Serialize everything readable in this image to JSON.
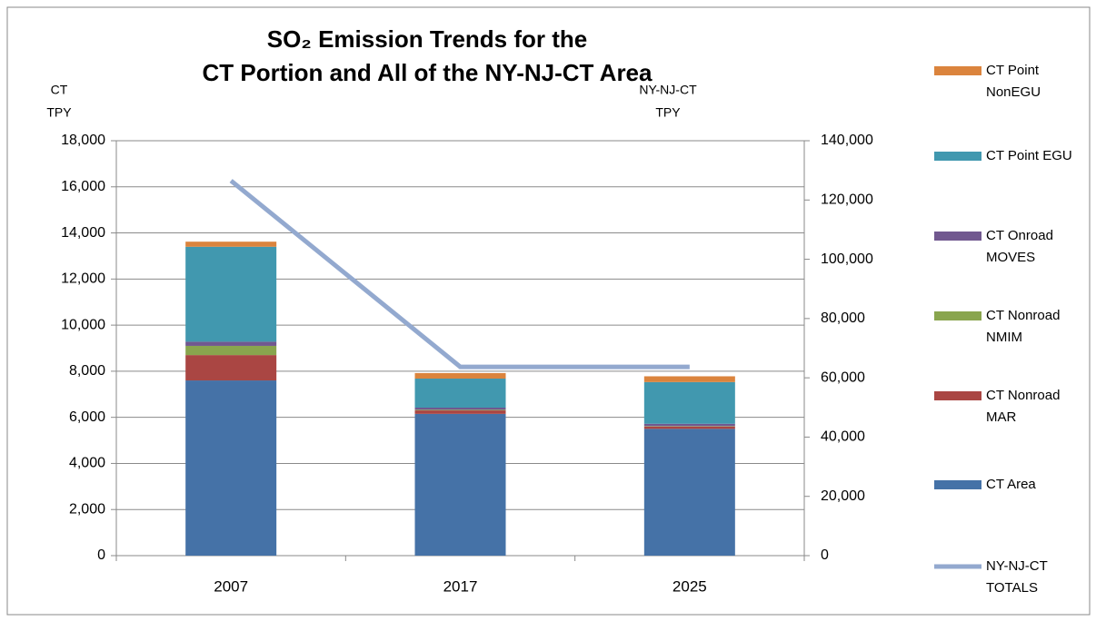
{
  "chart_data": {
    "type": "bar",
    "stacked": true,
    "title": [
      "SO₂ Emission Trends for the",
      "CT Portion and All of the NY-NJ-CT Area"
    ],
    "y_label": [
      "CT",
      "TPY"
    ],
    "y2_label": [
      "NY-NJ-CT",
      "TPY"
    ],
    "categories": [
      "2007",
      "2017",
      "2025"
    ],
    "ylim": [
      0,
      18000
    ],
    "yticks": [
      0,
      {
        "value": 2000,
        "label": "2,000"
      },
      {
        "value": 4000,
        "label": "4,000"
      },
      {
        "value": 6000,
        "label": "6,000"
      },
      {
        "value": 8000,
        "label": "8,000"
      },
      {
        "value": 10000,
        "label": "10,000"
      },
      {
        "value": 12000,
        "label": "12,000"
      },
      {
        "value": 14000,
        "label": "14,000"
      },
      {
        "value": 16000,
        "label": "16,000"
      },
      {
        "value": 18000,
        "label": "18,000"
      }
    ],
    "y2lim": [
      0,
      140000
    ],
    "y2ticks": [
      0,
      {
        "value": 20000,
        "label": "20,000"
      },
      {
        "value": 40000,
        "label": "40,000"
      },
      {
        "value": 60000,
        "label": "60,000"
      },
      {
        "value": 80000,
        "label": "80,000"
      },
      {
        "value": 100000,
        "label": "100,000"
      },
      {
        "value": 120000,
        "label": "120,000"
      },
      {
        "value": 140000,
        "label": "140,000"
      }
    ],
    "grid": true,
    "legend": "right",
    "series": [
      {
        "name": "CT Area",
        "color": "#4572a7",
        "values": [
          7600,
          6150,
          5500
        ]
      },
      {
        "name": "CT Nonroad MAR",
        "color": "#aa4643",
        "values": [
          1100,
          150,
          100
        ]
      },
      {
        "name": "CT Nonroad NMIM",
        "color": "#89a54e",
        "values": [
          400,
          30,
          20
        ]
      },
      {
        "name": "CT Onroad MOVES",
        "color": "#71588f",
        "values": [
          180,
          90,
          100
        ]
      },
      {
        "name": "CT Point EGU",
        "color": "#4198af",
        "values": [
          4120,
          1260,
          1810
        ]
      },
      {
        "name": "CT Point NonEGU",
        "color": "#db843d",
        "values": [
          220,
          240,
          250
        ]
      },
      {
        "name": "NY-NJ-CT TOTALS",
        "color": "#93a9cf",
        "type": "line",
        "axis": "y2",
        "values": [
          126500,
          63700,
          63700
        ]
      }
    ]
  }
}
